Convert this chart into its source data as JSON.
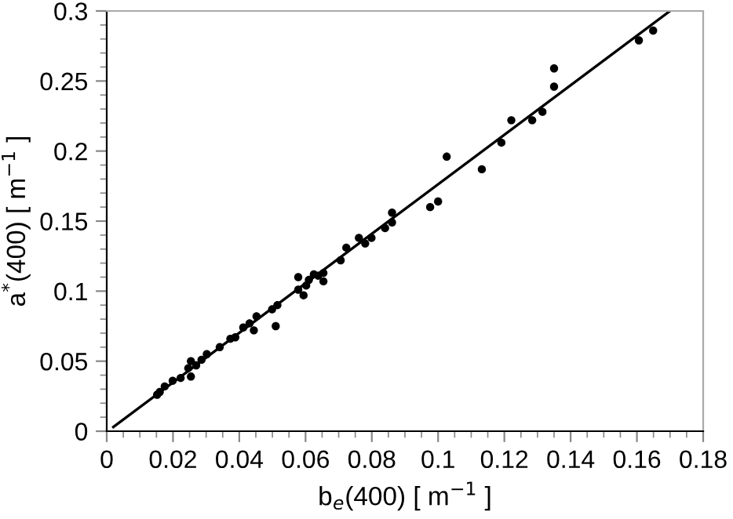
{
  "chart_data": {
    "type": "scatter",
    "xlabel": "b$_{e}$(400) [ m$^{−1}$ ]",
    "ylabel": "a$^{*}$(400) [ m$^{−1}$ ]",
    "xlim": [
      0,
      0.18
    ],
    "ylim": [
      0,
      0.3
    ],
    "xticks": [
      0,
      {
        "value": 0.005,
        "label": null
      },
      {
        "value": 0.01,
        "label": null
      },
      {
        "value": 0.015,
        "label": null
      },
      0.02,
      {
        "value": 0.025,
        "label": null
      },
      {
        "value": 0.03,
        "label": null
      },
      {
        "value": 0.035,
        "label": null
      },
      0.04,
      {
        "value": 0.045,
        "label": null
      },
      {
        "value": 0.05,
        "label": null
      },
      {
        "value": 0.055,
        "label": null
      },
      0.06,
      {
        "value": 0.065,
        "label": null
      },
      {
        "value": 0.07,
        "label": null
      },
      {
        "value": 0.075,
        "label": null
      },
      0.08,
      {
        "value": 0.085,
        "label": null
      },
      {
        "value": 0.09,
        "label": null
      },
      {
        "value": 0.095,
        "label": null
      },
      0.1,
      {
        "value": 0.105,
        "label": null
      },
      {
        "value": 0.11,
        "label": null
      },
      {
        "value": 0.115,
        "label": null
      },
      0.12,
      {
        "value": 0.125,
        "label": null
      },
      {
        "value": 0.13,
        "label": null
      },
      {
        "value": 0.135,
        "label": null
      },
      0.14,
      {
        "value": 0.145,
        "label": null
      },
      {
        "value": 0.15,
        "label": null
      },
      {
        "value": 0.155,
        "label": null
      },
      0.16,
      {
        "value": 0.165,
        "label": null
      },
      {
        "value": 0.17,
        "label": null
      },
      {
        "value": 0.175,
        "label": null
      },
      0.18
    ],
    "yticks": [
      0,
      {
        "value": 0.01,
        "label": null
      },
      {
        "value": 0.02,
        "label": null
      },
      {
        "value": 0.03,
        "label": null
      },
      {
        "value": 0.04,
        "label": null
      },
      0.05,
      {
        "value": 0.06,
        "label": null
      },
      {
        "value": 0.07,
        "label": null
      },
      {
        "value": 0.08,
        "label": null
      },
      {
        "value": 0.09,
        "label": null
      },
      0.1,
      {
        "value": 0.11,
        "label": null
      },
      {
        "value": 0.12,
        "label": null
      },
      {
        "value": 0.13,
        "label": null
      },
      {
        "value": 0.14,
        "label": null
      },
      0.15,
      {
        "value": 0.16,
        "label": null
      },
      {
        "value": 0.17,
        "label": null
      },
      {
        "value": 0.18,
        "label": null
      },
      {
        "value": 0.19,
        "label": null
      },
      0.2,
      {
        "value": 0.21,
        "label": null
      },
      {
        "value": 0.22,
        "label": null
      },
      {
        "value": 0.23,
        "label": null
      },
      {
        "value": 0.24,
        "label": null
      },
      0.25,
      {
        "value": 0.26,
        "label": null
      },
      {
        "value": 0.27,
        "label": null
      },
      {
        "value": 0.28,
        "label": null
      },
      {
        "value": 0.29,
        "label": null
      },
      0.3
    ],
    "grid": false,
    "legend": false,
    "series": [
      {
        "color": "#000000",
        "marker": "circle",
        "x": [
          0.1606,
          0.1649,
          0.135,
          0.135,
          0.1315,
          0.1284,
          0.1221,
          0.1191,
          0.1132,
          0.1026,
          0.1,
          0.0976,
          0.0861,
          0.0861,
          0.084,
          0.0799,
          0.078,
          0.0761,
          0.0723,
          0.0706,
          0.0654,
          0.0638,
          0.0654,
          0.0578,
          0.0625,
          0.061,
          0.0602,
          0.0578,
          0.0594,
          0.0515,
          0.0499,
          0.051,
          0.0452,
          0.0431,
          0.0412,
          0.0444,
          0.0388,
          0.0373,
          0.0341,
          0.0302,
          0.0286,
          0.0254,
          0.0246,
          0.027,
          0.0254,
          0.0223,
          0.0199,
          0.0175,
          0.016,
          0.0152
        ],
        "values": [
          0.279,
          0.286,
          0.259,
          0.246,
          0.228,
          0.222,
          0.222,
          0.206,
          0.187,
          0.196,
          0.164,
          0.16,
          0.156,
          0.149,
          0.145,
          0.138,
          0.134,
          0.138,
          0.131,
          0.122,
          0.113,
          0.111,
          0.107,
          0.11,
          0.112,
          0.108,
          0.104,
          0.101,
          0.097,
          0.09,
          0.087,
          0.075,
          0.082,
          0.077,
          0.074,
          0.072,
          0.067,
          0.066,
          0.06,
          0.055,
          0.051,
          0.05,
          0.045,
          0.047,
          0.039,
          0.038,
          0.036,
          0.032,
          0.028,
          0.026
        ]
      },
      {
        "type": "line",
        "color": "#000000",
        "marker": "none",
        "line_style": "solid",
        "x": [
          0.002,
          0.17
        ],
        "values": [
          0.003,
          0.3
        ]
      }
    ]
  }
}
